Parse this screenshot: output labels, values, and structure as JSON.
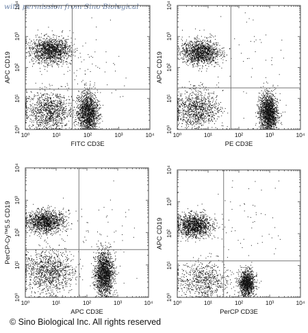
{
  "watermark": "with permission from Sino Biological",
  "copyright": "© Sino Biological Inc. All rights reserved",
  "chart_data": [
    {
      "type": "scatter",
      "xlabel": "FITC CD3E",
      "ylabel": "APC CD19",
      "xscale": "log",
      "yscale": "log",
      "xlim": [
        1,
        10000
      ],
      "ylim": [
        1,
        10000
      ],
      "xticks": [
        "10⁰",
        "10¹",
        "10²",
        "10³",
        "10⁴"
      ],
      "yticks": [
        "10⁰",
        "10¹",
        "10²",
        "10³",
        "10⁴"
      ],
      "quadrant_x": 32,
      "quadrant_y": 20,
      "populations": [
        {
          "cx": 0.8,
          "cy": 2.55,
          "sx": 0.32,
          "sy": 0.2,
          "n": 1400
        },
        {
          "cx": 0.75,
          "cy": 0.6,
          "sx": 0.38,
          "sy": 0.32,
          "n": 1100
        },
        {
          "cx": 2.0,
          "cy": 0.55,
          "sx": 0.16,
          "sy": 0.33,
          "n": 1600
        },
        {
          "cx": 2.0,
          "cy": 2.0,
          "sx": 0.7,
          "sy": 0.7,
          "n": 70
        }
      ]
    },
    {
      "type": "scatter",
      "xlabel": "PE CD3E",
      "ylabel": "APC CD19",
      "xscale": "log",
      "yscale": "log",
      "xlim": [
        1,
        10000
      ],
      "ylim": [
        1,
        10000
      ],
      "xticks": [
        "10⁰",
        "10¹",
        "10²",
        "10³",
        "10⁴"
      ],
      "yticks": [
        "10⁰",
        "10¹",
        "10²",
        "10³",
        "10⁴"
      ],
      "quadrant_x": 55,
      "quadrant_y": 22,
      "populations": [
        {
          "cx": 0.75,
          "cy": 2.5,
          "sx": 0.3,
          "sy": 0.2,
          "n": 1300
        },
        {
          "cx": 0.65,
          "cy": 0.65,
          "sx": 0.35,
          "sy": 0.3,
          "n": 1000
        },
        {
          "cx": 2.95,
          "cy": 0.55,
          "sx": 0.15,
          "sy": 0.3,
          "n": 1700
        },
        {
          "cx": 2.2,
          "cy": 2.2,
          "sx": 0.7,
          "sy": 0.7,
          "n": 60
        }
      ]
    },
    {
      "type": "scatter",
      "xlabel": "APC CD3E",
      "ylabel": "PerCP-Cy™5.5 CD19",
      "xscale": "log",
      "yscale": "log",
      "xlim": [
        1,
        10000
      ],
      "ylim": [
        1,
        10000
      ],
      "xticks": [
        "10⁰",
        "10¹",
        "10²",
        "10³",
        "10⁴"
      ],
      "yticks": [
        "10⁰",
        "10¹",
        "10²",
        "10³",
        "10⁴"
      ],
      "quadrant_x": 55,
      "quadrant_y": 30,
      "populations": [
        {
          "cx": 0.65,
          "cy": 2.35,
          "sx": 0.3,
          "sy": 0.17,
          "n": 1300
        },
        {
          "cx": 0.75,
          "cy": 0.8,
          "sx": 0.42,
          "sy": 0.35,
          "n": 1100
        },
        {
          "cx": 2.55,
          "cy": 0.75,
          "sx": 0.15,
          "sy": 0.33,
          "n": 1700
        },
        {
          "cx": 2.3,
          "cy": 2.0,
          "sx": 0.7,
          "sy": 0.7,
          "n": 60
        }
      ]
    },
    {
      "type": "scatter",
      "xlabel": "PerCP CD3E",
      "ylabel": "APC CD19",
      "xscale": "log",
      "yscale": "log",
      "xlim": [
        1,
        10000
      ],
      "ylim": [
        1,
        10000
      ],
      "xticks": [
        "10⁰",
        "10¹",
        "10²",
        "10³",
        "10⁴"
      ],
      "yticks": [
        "10⁰",
        "10¹",
        "10²",
        "10³",
        "10⁴"
      ],
      "quadrant_x": 32,
      "quadrant_y": 14,
      "populations": [
        {
          "cx": 0.55,
          "cy": 2.25,
          "sx": 0.28,
          "sy": 0.18,
          "n": 1300
        },
        {
          "cx": 0.85,
          "cy": 0.55,
          "sx": 0.4,
          "sy": 0.3,
          "n": 700
        },
        {
          "cx": 2.25,
          "cy": 0.45,
          "sx": 0.13,
          "sy": 0.2,
          "n": 1100
        },
        {
          "cx": 2.2,
          "cy": 2.4,
          "sx": 0.75,
          "sy": 0.75,
          "n": 60
        }
      ]
    }
  ]
}
